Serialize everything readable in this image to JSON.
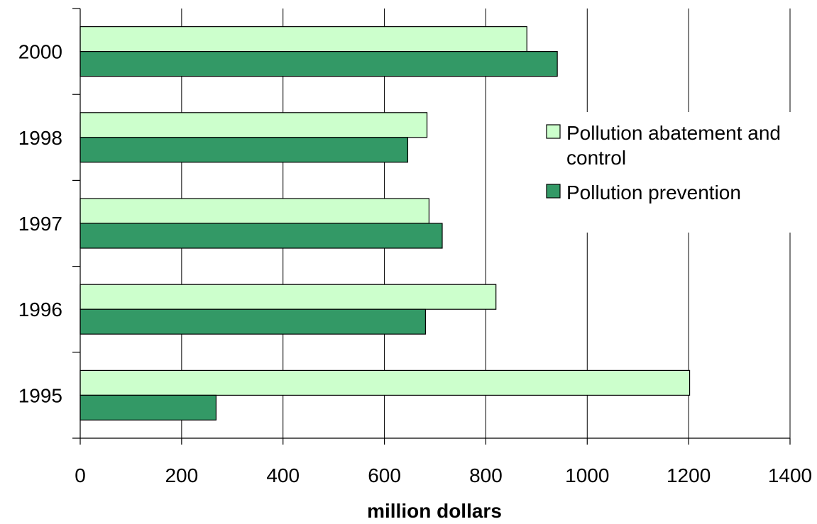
{
  "chart_data": {
    "type": "bar",
    "orientation": "horizontal",
    "categories": [
      "1995",
      "1996",
      "1997",
      "1998",
      "2000"
    ],
    "series": [
      {
        "name": "Pollution abatement and control",
        "values": [
          1202,
          820,
          688,
          684,
          881
        ],
        "color": "#ccffcc"
      },
      {
        "name": "Pollution prevention",
        "values": [
          268,
          681,
          714,
          646,
          941
        ],
        "color": "#339966"
      }
    ],
    "xlim": [
      0,
      1400
    ],
    "xticks": [
      "0",
      "200",
      "400",
      "600",
      "800",
      "1000",
      "1200",
      "1400"
    ],
    "xlabel": "million dollars",
    "ylabel": "",
    "title": "",
    "grid": "vertical",
    "legend": {
      "placement": "right",
      "lines": [
        [
          "Pollution abatement and",
          "control"
        ],
        [
          "Pollution prevention"
        ]
      ]
    }
  }
}
